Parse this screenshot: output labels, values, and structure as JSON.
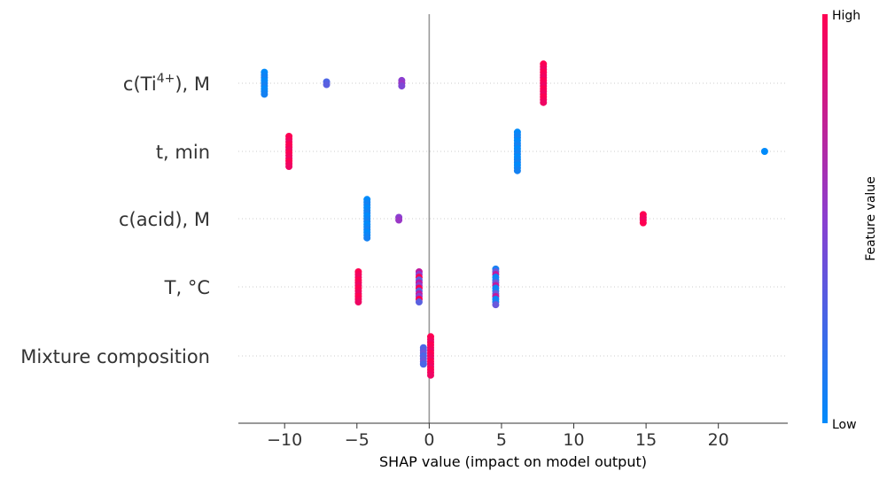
{
  "chart_data": {
    "type": "scatter",
    "subtype": "shap-beeswarm",
    "xlabel": "SHAP value (impact on model output)",
    "xlim": [
      -13.2,
      24.8
    ],
    "xticks": [
      -10,
      -5,
      0,
      5,
      10,
      15,
      20
    ],
    "xtick_labels": [
      "−10",
      "−5",
      "0",
      "5",
      "10",
      "15",
      "20"
    ],
    "colorbar": {
      "title": "Feature value",
      "high_label": "High",
      "low_label": "Low",
      "low_color": "#008bfb",
      "mid_color": "#8b3fd0",
      "high_color": "#ff0052"
    },
    "grid": "dotted row guides",
    "features": [
      {
        "name": "c(Ti",
        "sup": "4+",
        "suffix": "), M",
        "clusters": [
          {
            "x": -11.4,
            "n": 9,
            "color": "low"
          },
          {
            "x": -7.1,
            "n": 2,
            "color": "lowmid"
          },
          {
            "x": -1.9,
            "n": 3,
            "color": "mid"
          },
          {
            "x": 7.9,
            "n": 15,
            "color": "high"
          }
        ]
      },
      {
        "name": "t, min",
        "clusters": [
          {
            "x": -9.7,
            "n": 12,
            "color": "high"
          },
          {
            "x": 6.1,
            "n": 15,
            "color": "low"
          },
          {
            "x": 23.2,
            "n": 1,
            "color": "low"
          }
        ]
      },
      {
        "name": "c(acid), M",
        "clusters": [
          {
            "x": -4.3,
            "n": 15,
            "color": "low"
          },
          {
            "x": -2.1,
            "n": 2,
            "color": "mid"
          },
          {
            "x": 14.8,
            "n": 4,
            "color": "high"
          }
        ]
      },
      {
        "name": "T, °C",
        "clusters": [
          {
            "x": -4.9,
            "n": 12,
            "color": "high"
          },
          {
            "x": -0.7,
            "n": 12,
            "color": "mixed"
          },
          {
            "x": 4.6,
            "n": 14,
            "color": "lowmix"
          }
        ]
      },
      {
        "name": "Mixture composition",
        "clusters": [
          {
            "x": -0.4,
            "n": 7,
            "color": "lowmid"
          },
          {
            "x": 0.1,
            "n": 15,
            "color": "high"
          }
        ]
      }
    ]
  }
}
